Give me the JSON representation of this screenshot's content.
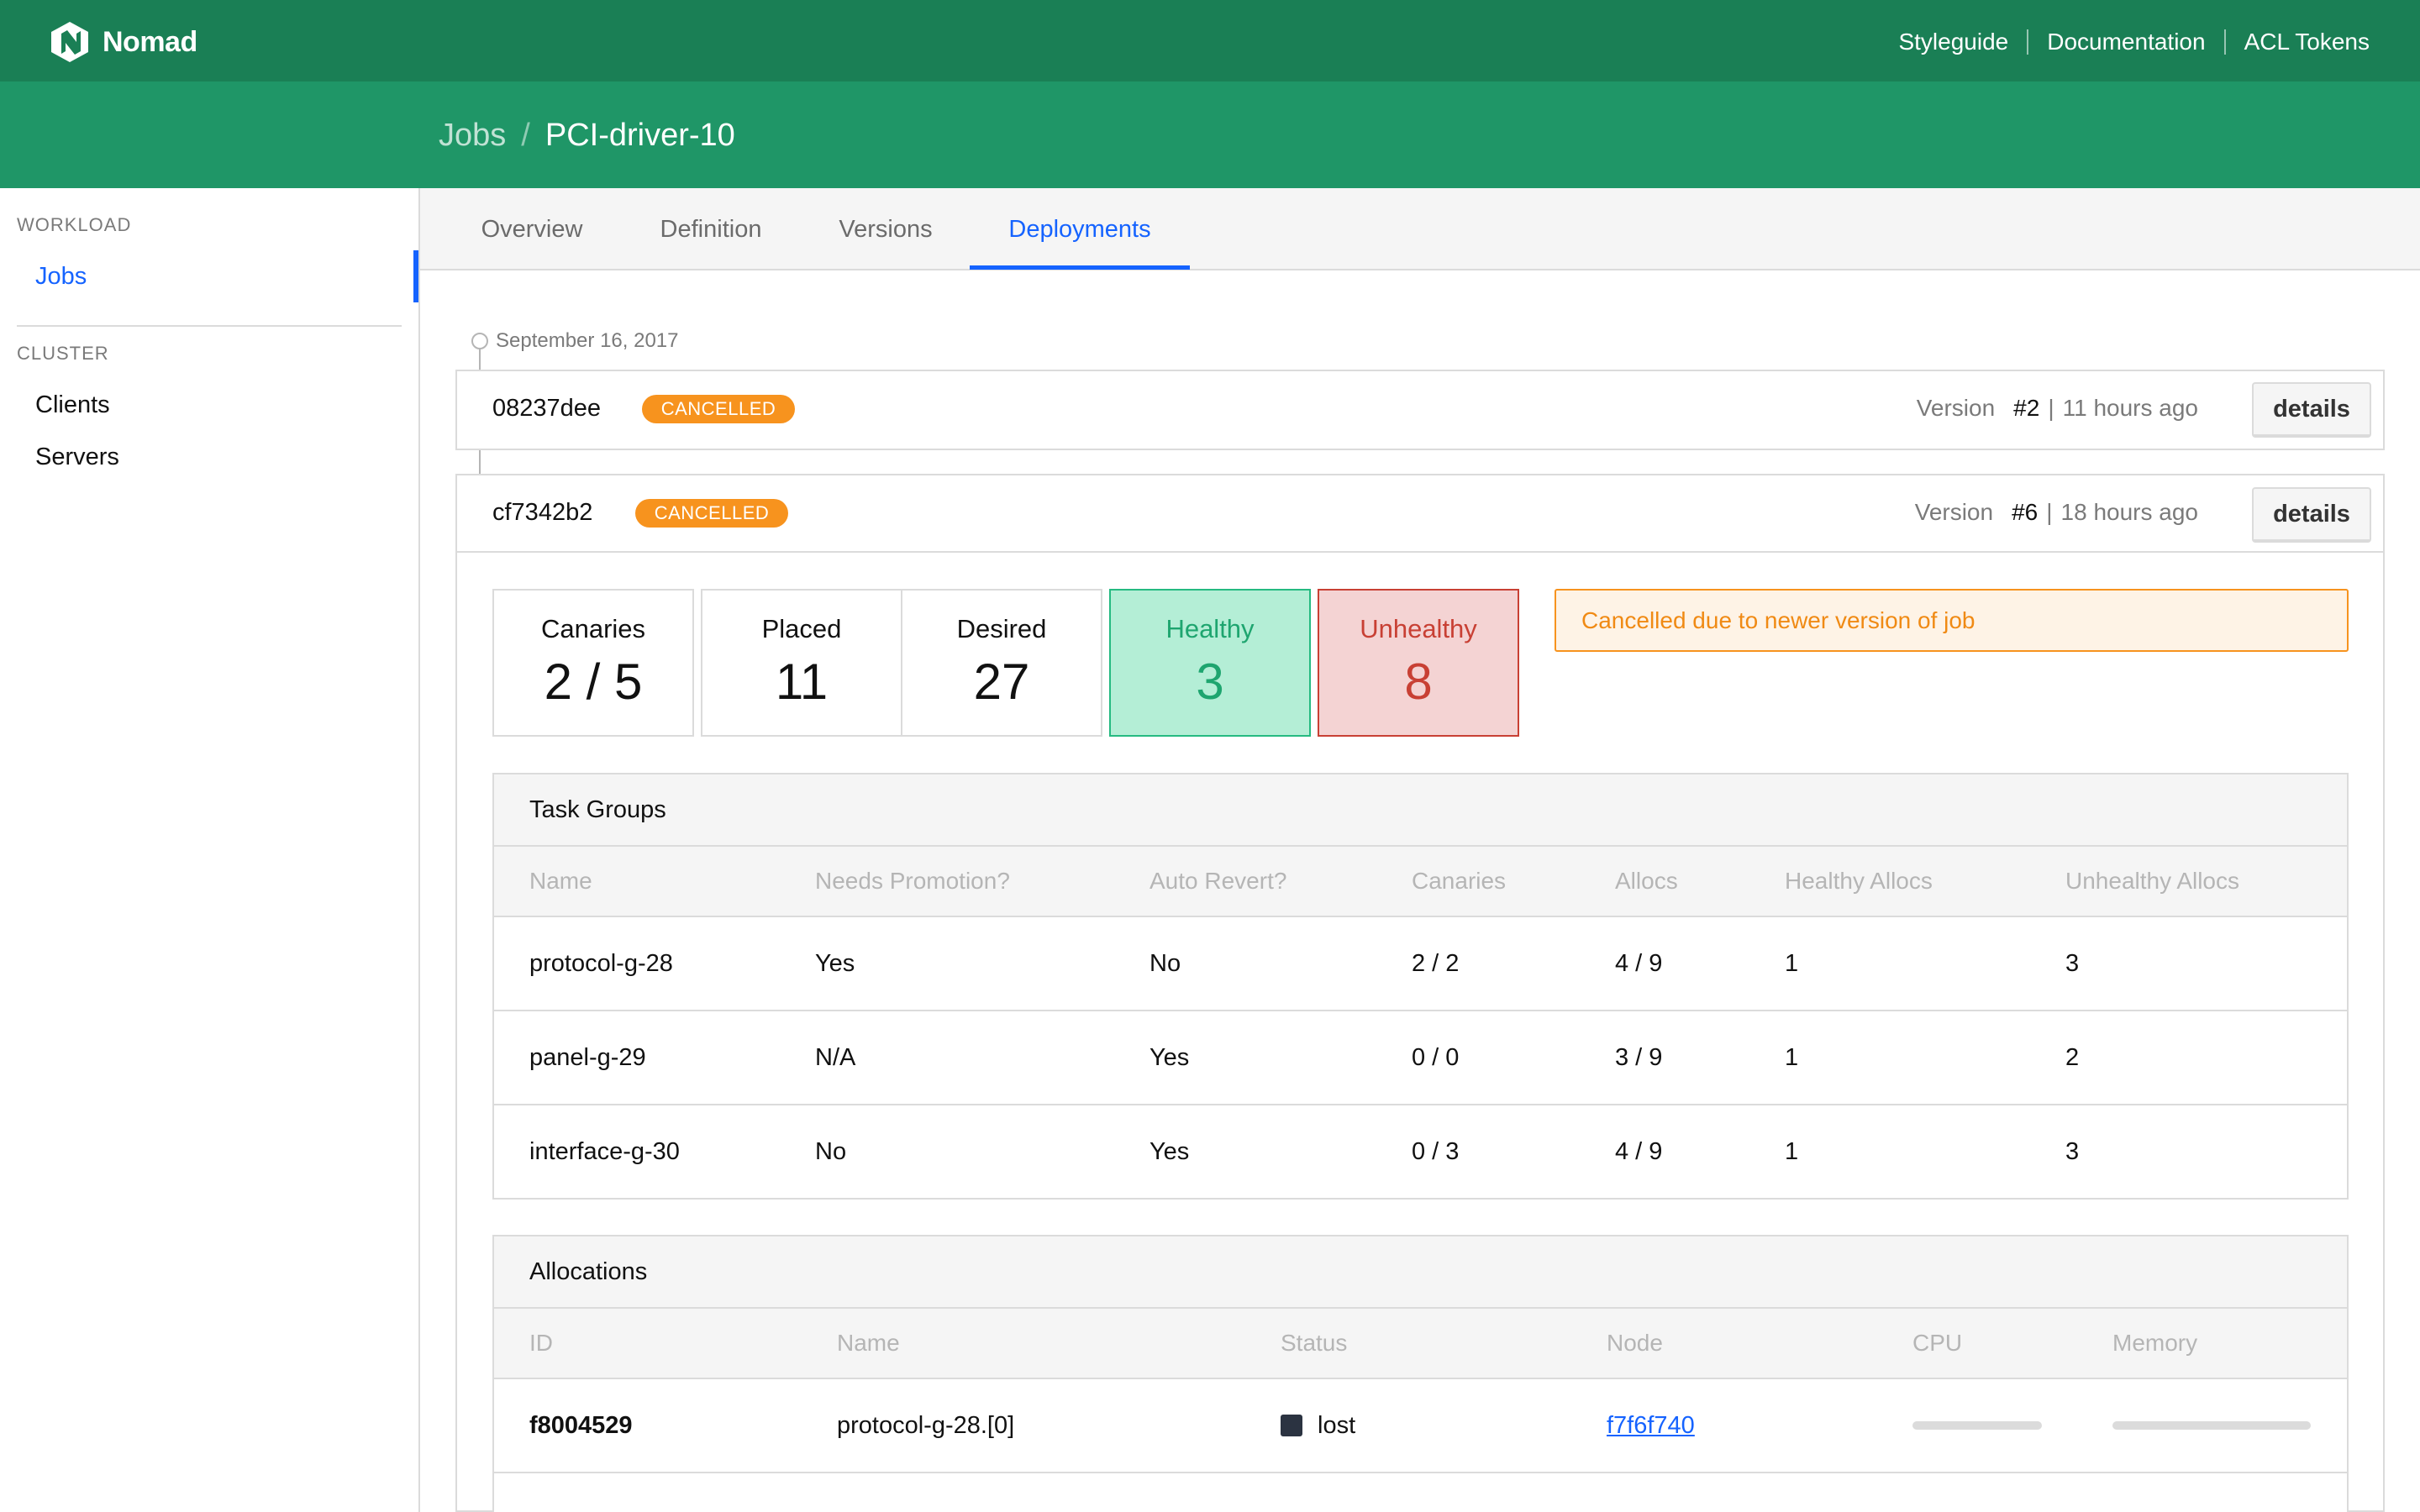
{
  "header": {
    "brand": "Nomad",
    "links": [
      "Styleguide",
      "Documentation",
      "ACL Tokens"
    ],
    "colors": {
      "topbar": "#1a7f55",
      "subnav": "#1f9667",
      "accent": "#1563ff",
      "warning": "#f7931e"
    }
  },
  "breadcrumb": {
    "parent": "Jobs",
    "separator": "/",
    "current": "PCI-driver-10"
  },
  "sidebar": {
    "workload_label": "WORKLOAD",
    "workload_items": [
      {
        "label": "Jobs",
        "active": true
      }
    ],
    "cluster_label": "CLUSTER",
    "cluster_items": [
      {
        "label": "Clients"
      },
      {
        "label": "Servers"
      }
    ]
  },
  "tabs": [
    {
      "label": "Overview"
    },
    {
      "label": "Definition"
    },
    {
      "label": "Versions"
    },
    {
      "label": "Deployments",
      "active": true
    }
  ],
  "timeline": {
    "date": "September 16, 2017"
  },
  "deployments": [
    {
      "id": "08237dee",
      "status": "CANCELLED",
      "version_label": "Version",
      "version": "#2",
      "separator": "|",
      "ago": "11 hours ago",
      "details_label": "details"
    },
    {
      "id": "cf7342b2",
      "status": "CANCELLED",
      "version_label": "Version",
      "version": "#6",
      "separator": "|",
      "ago": "18 hours ago",
      "details_label": "details"
    }
  ],
  "stats": {
    "canaries": {
      "label": "Canaries",
      "value": "2 / 5"
    },
    "placed": {
      "label": "Placed",
      "value": "11"
    },
    "desired": {
      "label": "Desired",
      "value": "27"
    },
    "healthy": {
      "label": "Healthy",
      "value": "3"
    },
    "unhealthy": {
      "label": "Unhealthy",
      "value": "8"
    }
  },
  "notice": "Cancelled due to newer version of job",
  "task_groups": {
    "title": "Task Groups",
    "columns": [
      "Name",
      "Needs Promotion?",
      "Auto Revert?",
      "Canaries",
      "Allocs",
      "Healthy Allocs",
      "Unhealthy Allocs"
    ],
    "rows": [
      [
        "protocol-g-28",
        "Yes",
        "No",
        "2 / 2",
        "4 / 9",
        "1",
        "3"
      ],
      [
        "panel-g-29",
        "N/A",
        "Yes",
        "0 / 0",
        "3 / 9",
        "1",
        "2"
      ],
      [
        "interface-g-30",
        "No",
        "Yes",
        "0 / 3",
        "4 / 9",
        "1",
        "3"
      ]
    ]
  },
  "allocations": {
    "title": "Allocations",
    "columns": [
      "ID",
      "Name",
      "Status",
      "Node",
      "CPU",
      "Memory"
    ],
    "rows": [
      {
        "id": "f8004529",
        "name": "protocol-g-28.[0]",
        "status": "lost",
        "node": "f7f6f740",
        "cpu_fraction": 0,
        "memory_fraction": 0
      }
    ]
  }
}
